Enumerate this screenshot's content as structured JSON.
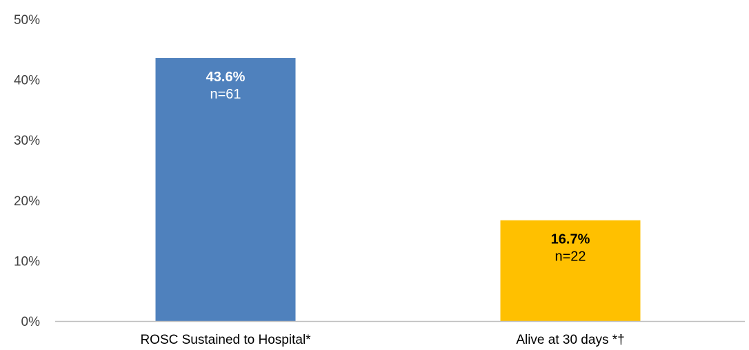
{
  "chart_data": {
    "type": "bar",
    "categories": [
      "ROSC Sustained to Hospital*",
      "Alive at 30 days *†"
    ],
    "values": [
      43.6,
      16.7
    ],
    "value_labels": [
      "43.6%",
      "16.7%"
    ],
    "count_labels": [
      "n=61",
      "n=22"
    ],
    "colors": [
      "#4F81BD",
      "#FFC000"
    ],
    "label_colors": [
      "#FFFFFF",
      "#000000"
    ],
    "ylim": [
      0,
      50
    ],
    "yticks": [
      0,
      10,
      20,
      30,
      40,
      50
    ],
    "ytick_labels": [
      "0%",
      "10%",
      "20%",
      "30%",
      "40%",
      "50%"
    ],
    "grid": false,
    "title": "",
    "xlabel": "",
    "ylabel": ""
  }
}
